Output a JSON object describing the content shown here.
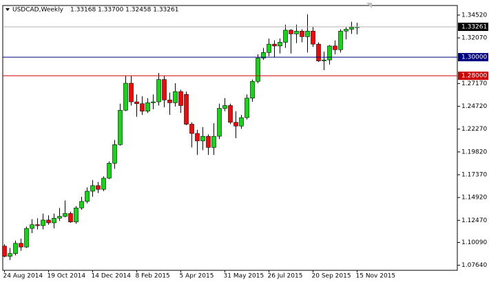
{
  "chart_data": {
    "type": "candlestick",
    "title": "USDCAD,Weekly",
    "subtitle": "1.33168 1.33700 1.32458 1.33261",
    "categories": [
      "24 Aug 2014",
      null,
      null,
      null,
      null,
      null,
      null,
      null,
      "19 Oct 2014",
      null,
      null,
      null,
      null,
      null,
      null,
      null,
      "14 Dec 2014",
      null,
      null,
      null,
      null,
      null,
      null,
      null,
      "8 Feb 2015",
      null,
      null,
      null,
      null,
      null,
      null,
      null,
      "5 Apr 2015",
      null,
      null,
      null,
      null,
      null,
      null,
      null,
      "31 May 2015",
      null,
      null,
      null,
      null,
      null,
      null,
      null,
      "26 Jul 2015",
      null,
      null,
      null,
      null,
      null,
      null,
      null,
      "20 Sep 2015",
      null,
      null,
      null,
      null,
      null,
      null,
      null,
      "15 Nov 2015"
    ],
    "open": [
      1.097,
      1.086,
      1.089,
      1.1,
      1.096,
      1.116,
      1.12,
      1.119,
      1.125,
      1.122,
      1.127,
      1.129,
      1.132,
      1.123,
      1.138,
      1.145,
      1.156,
      1.162,
      1.158,
      1.17,
      1.186,
      1.206,
      1.243,
      1.272,
      1.252,
      1.25,
      1.242,
      1.251,
      1.252,
      1.276,
      1.254,
      1.251,
      1.263,
      1.26,
      1.228,
      1.218,
      1.21,
      1.215,
      1.203,
      1.215,
      1.245,
      1.248,
      1.23,
      1.226,
      1.235,
      1.256,
      1.274,
      1.299,
      1.305,
      1.314,
      1.312,
      1.316,
      1.329,
      1.325,
      1.328,
      1.322,
      1.328,
      1.314,
      1.296,
      1.297,
      1.312,
      1.308,
      1.328,
      1.33,
      1.33168
    ],
    "high": [
      1.099,
      1.095,
      1.103,
      1.105,
      1.118,
      1.126,
      1.127,
      1.132,
      1.13,
      1.132,
      1.138,
      1.146,
      1.134,
      1.14,
      1.15,
      1.16,
      1.168,
      1.166,
      1.172,
      1.188,
      1.211,
      1.25,
      1.28,
      1.28,
      1.26,
      1.258,
      1.256,
      1.26,
      1.283,
      1.28,
      1.262,
      1.272,
      1.265,
      1.263,
      1.23,
      1.222,
      1.225,
      1.217,
      1.229,
      1.25,
      1.256,
      1.25,
      1.242,
      1.238,
      1.26,
      1.276,
      1.303,
      1.31,
      1.32,
      1.318,
      1.32,
      1.335,
      1.33,
      1.335,
      1.33,
      1.346,
      1.333,
      1.316,
      1.306,
      1.313,
      1.318,
      1.33,
      1.332,
      1.338,
      1.337
    ],
    "low": [
      1.085,
      1.082,
      1.087,
      1.092,
      1.095,
      1.111,
      1.115,
      1.115,
      1.12,
      1.116,
      1.124,
      1.128,
      1.122,
      1.121,
      1.136,
      1.143,
      1.15,
      1.154,
      1.156,
      1.169,
      1.18,
      1.205,
      1.242,
      1.248,
      1.236,
      1.238,
      1.24,
      1.244,
      1.248,
      1.246,
      1.238,
      1.247,
      1.24,
      1.227,
      1.203,
      1.195,
      1.2,
      1.195,
      1.195,
      1.212,
      1.242,
      1.228,
      1.213,
      1.223,
      1.233,
      1.252,
      1.272,
      1.297,
      1.301,
      1.3,
      1.304,
      1.31,
      1.304,
      1.315,
      1.316,
      1.305,
      1.311,
      1.295,
      1.286,
      1.292,
      1.303,
      1.305,
      1.319,
      1.325,
      1.32458
    ],
    "close": [
      1.086,
      1.089,
      1.1,
      1.096,
      1.116,
      1.12,
      1.119,
      1.125,
      1.122,
      1.127,
      1.129,
      1.132,
      1.123,
      1.138,
      1.145,
      1.156,
      1.162,
      1.158,
      1.17,
      1.186,
      1.206,
      1.243,
      1.272,
      1.252,
      1.25,
      1.242,
      1.251,
      1.252,
      1.276,
      1.254,
      1.251,
      1.263,
      1.248,
      1.228,
      1.218,
      1.21,
      1.215,
      1.203,
      1.215,
      1.245,
      1.248,
      1.23,
      1.226,
      1.235,
      1.256,
      1.274,
      1.299,
      1.305,
      1.314,
      1.312,
      1.316,
      1.329,
      1.325,
      1.328,
      1.322,
      1.328,
      1.314,
      1.296,
      1.297,
      1.312,
      1.308,
      1.328,
      1.33,
      1.332,
      1.33261
    ],
    "up_color": "#22cc22",
    "down_color": "#e01010",
    "ylim": [
      1.071,
      1.3555
    ],
    "yticks": [
      {
        "value": 1.3452,
        "label": "1.34520"
      },
      {
        "value": 1.3207,
        "label": "1.32070"
      },
      {
        "value": 1.2717,
        "label": "1.27170"
      },
      {
        "value": 1.2472,
        "label": "1.24720"
      },
      {
        "value": 1.2227,
        "label": "1.22270"
      },
      {
        "value": 1.1982,
        "label": "1.19820"
      },
      {
        "value": 1.1737,
        "label": "1.17370"
      },
      {
        "value": 1.1492,
        "label": "1.14920"
      },
      {
        "value": 1.1247,
        "label": "1.12470"
      },
      {
        "value": 1.1009,
        "label": "1.10090"
      },
      {
        "value": 1.0764,
        "label": "1.07640"
      }
    ],
    "hlines": [
      {
        "value": 1.33261,
        "label": "1.33261",
        "color": "#b0b0b0",
        "label_color": "#000000"
      },
      {
        "value": 1.3,
        "label": "1.30000",
        "color": "#000080",
        "label_color": "#000080"
      },
      {
        "value": 1.28,
        "label": "1.28000",
        "color": "#cc0000",
        "label_color": "#cc0000"
      }
    ]
  }
}
